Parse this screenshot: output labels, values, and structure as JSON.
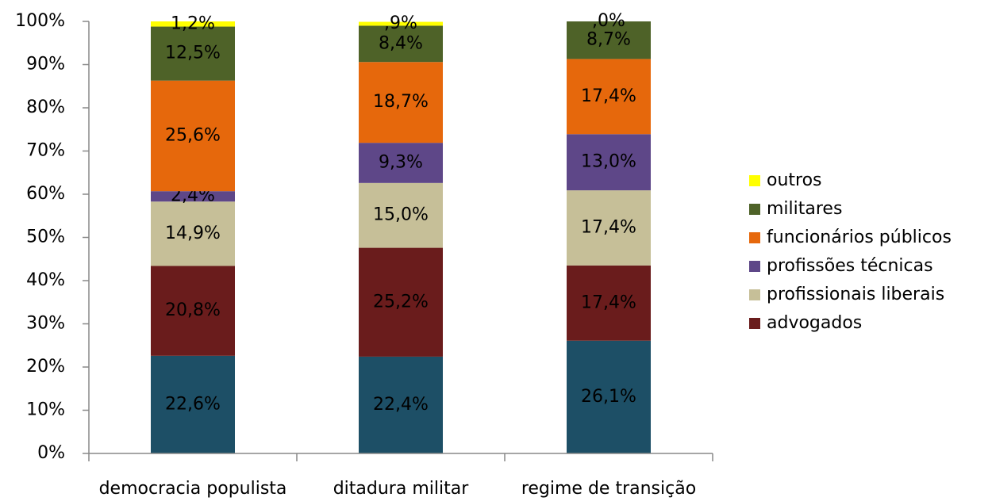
{
  "chart_data": {
    "type": "stacked_bar",
    "categories": [
      "democracia populista",
      "ditadura militar",
      "regime de transição"
    ],
    "series": [
      {
        "color": "#1d4f66",
        "values": [
          22.6,
          22.4,
          26.1
        ],
        "value_labels": [
          "22,6%",
          "22,4%",
          "26,1%"
        ]
      },
      {
        "name": "advogados",
        "color": "#6a1c1c",
        "values": [
          20.8,
          25.2,
          17.4
        ],
        "value_labels": [
          "20,8%",
          "25,2%",
          "17,4%"
        ]
      },
      {
        "name": "profissionais liberais",
        "color": "#c6bf98",
        "values": [
          14.9,
          15.0,
          17.4
        ],
        "value_labels": [
          "14,9%",
          "15,0%",
          "17,4%"
        ]
      },
      {
        "name": "profissões técnicas",
        "color": "#5e4788",
        "values": [
          2.4,
          9.3,
          13.0
        ],
        "value_labels": [
          "2,4%",
          "9,3%",
          "13,0%"
        ]
      },
      {
        "name": "funcionários públicos",
        "color": "#e6680c",
        "values": [
          25.6,
          18.7,
          17.4
        ],
        "value_labels": [
          "25,6%",
          "18,7%",
          "17,4%"
        ]
      },
      {
        "name": "militares",
        "color": "#4e6228",
        "values": [
          12.5,
          8.4,
          8.7
        ],
        "value_labels": [
          "12,5%",
          "8,4%",
          "8,7%"
        ]
      },
      {
        "name": "outros",
        "color": "#ffff00",
        "values": [
          1.2,
          0.9,
          0
        ],
        "value_labels": [
          "1,2%",
          ",9%",
          ",0%"
        ]
      }
    ],
    "ylim": [
      0,
      100
    ],
    "yticks": [
      {
        "value": 0,
        "label": "0%"
      },
      {
        "value": 10,
        "label": "10%"
      },
      {
        "value": 20,
        "label": "20%"
      },
      {
        "value": 30,
        "label": "30%"
      },
      {
        "value": 40,
        "label": "40%"
      },
      {
        "value": 50,
        "label": "50%"
      },
      {
        "value": 60,
        "label": "60%"
      },
      {
        "value": 70,
        "label": "70%"
      },
      {
        "value": 80,
        "label": "80%"
      },
      {
        "value": 90,
        "label": "90%"
      },
      {
        "value": 100,
        "label": "100%"
      }
    ],
    "legend": "right"
  }
}
